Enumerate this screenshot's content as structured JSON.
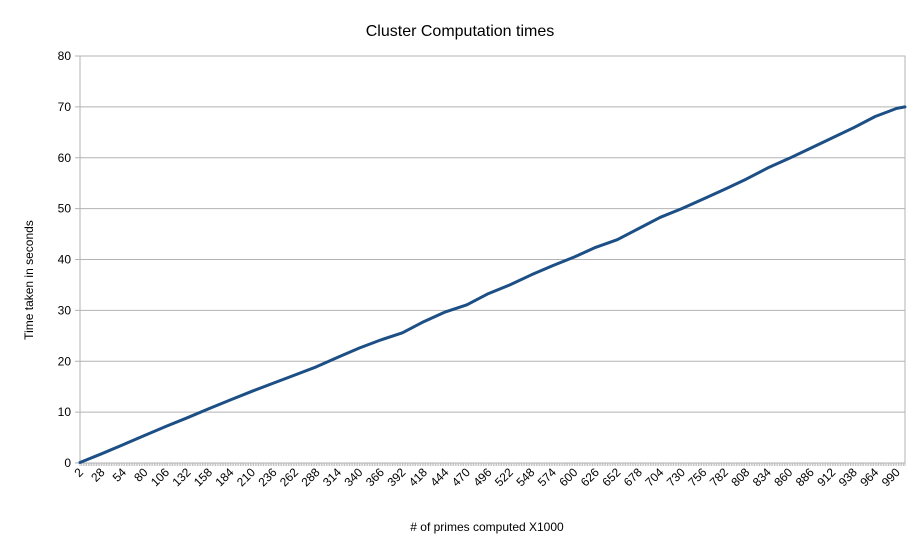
{
  "chart_data": {
    "type": "line",
    "title": "Cluster Computation times",
    "xlabel": "# of primes computed X1000",
    "ylabel": "Time taken in seconds",
    "ylim": [
      0,
      80
    ],
    "yticks": [
      0,
      10,
      20,
      30,
      40,
      50,
      60,
      70,
      80
    ],
    "xlim": [
      2,
      1000
    ],
    "xtick_labels": [
      2,
      28,
      54,
      80,
      106,
      132,
      158,
      184,
      210,
      236,
      262,
      288,
      314,
      340,
      366,
      392,
      418,
      444,
      470,
      496,
      522,
      548,
      574,
      600,
      626,
      652,
      678,
      704,
      730,
      756,
      782,
      808,
      834,
      860,
      886,
      912,
      938,
      964,
      990
    ],
    "grid": true,
    "legend": "none",
    "series": [
      {
        "color": "#1c4f86",
        "x": [
          2,
          28,
          54,
          80,
          106,
          132,
          158,
          184,
          210,
          236,
          262,
          288,
          314,
          340,
          366,
          392,
          418,
          444,
          470,
          496,
          522,
          548,
          574,
          600,
          626,
          652,
          678,
          704,
          730,
          756,
          782,
          808,
          834,
          860,
          886,
          912,
          938,
          964,
          990,
          1000
        ],
        "values": [
          0.1,
          1.8,
          3.6,
          5.4,
          7.2,
          8.9,
          10.7,
          12.4,
          14.1,
          15.7,
          17.3,
          18.9,
          20.8,
          22.6,
          24.2,
          25.6,
          27.8,
          29.7,
          31.1,
          33.3,
          35.0,
          37.0,
          38.8,
          40.5,
          42.4,
          43.9,
          46.1,
          48.3,
          50.0,
          51.9,
          53.8,
          55.8,
          58.0,
          59.9,
          61.9,
          63.9,
          65.9,
          68.1,
          69.7,
          70.0
        ]
      }
    ]
  }
}
